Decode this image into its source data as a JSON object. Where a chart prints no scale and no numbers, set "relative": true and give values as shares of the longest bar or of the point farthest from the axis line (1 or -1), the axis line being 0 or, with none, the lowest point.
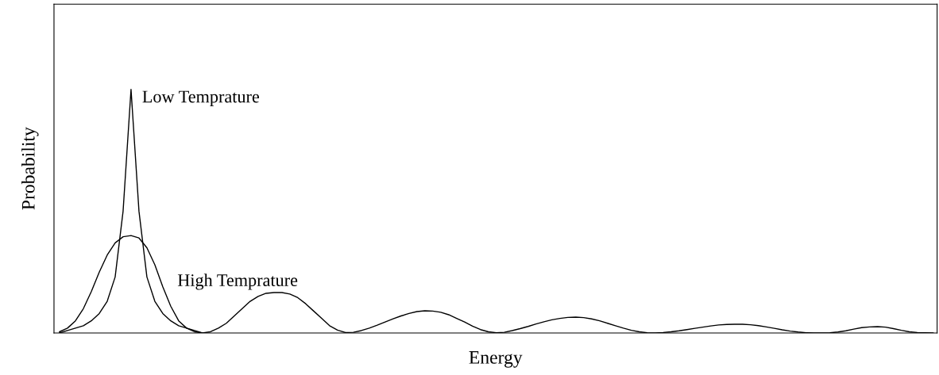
{
  "chart_data": {
    "type": "line",
    "relative": true,
    "xlabel": "Energy",
    "ylabel": "Probability",
    "tick_labels": false,
    "legend": false,
    "categories": [
      null,
      null,
      null,
      null,
      null,
      null,
      null,
      null,
      null,
      null,
      null,
      null,
      null,
      null,
      null,
      null,
      null,
      null,
      null,
      null,
      null,
      null,
      null,
      null,
      null,
      null,
      null,
      null,
      null,
      null,
      null,
      null,
      null,
      null,
      null,
      null,
      null,
      null,
      null,
      null,
      null,
      null,
      null,
      null,
      null,
      null,
      null,
      null,
      null,
      null,
      null,
      null,
      null,
      null,
      null,
      null,
      null,
      null,
      null,
      null,
      null,
      null,
      null,
      null,
      null,
      null,
      null,
      null,
      null,
      null,
      null,
      null,
      null,
      null,
      null,
      null,
      null,
      null,
      null,
      null,
      null,
      null,
      null,
      null,
      null,
      null,
      null,
      null,
      null,
      null,
      null,
      null,
      null,
      null,
      null,
      null,
      null,
      null,
      null,
      null,
      null,
      null,
      null,
      null,
      null,
      null,
      null,
      null,
      null,
      null,
      null
    ],
    "series": [
      {
        "name": "Low Temprature",
        "color": "#000000",
        "values": [
          0,
          0.01,
          0.02,
          0.03,
          0.05,
          0.08,
          0.13,
          0.23,
          0.5,
          1.0,
          0.5,
          0.23,
          0.13,
          0.08,
          0.05,
          0.03,
          0.02,
          0.01,
          0,
          null,
          null,
          null,
          null,
          null,
          null,
          null,
          null,
          null,
          null,
          null,
          null,
          null,
          null,
          null,
          null,
          null,
          null,
          null,
          null,
          null,
          null,
          null,
          null,
          null,
          null,
          null,
          null,
          null,
          null,
          null,
          null,
          null,
          null,
          null,
          null,
          null,
          null,
          null,
          null,
          null,
          null,
          null,
          null,
          null,
          null,
          null,
          null,
          null,
          null,
          null,
          null,
          null,
          null,
          null,
          null,
          null,
          null,
          null,
          null,
          null,
          null,
          null,
          null,
          null,
          null,
          null,
          null,
          null,
          null,
          null,
          null,
          null,
          null,
          null,
          null,
          null,
          null,
          null,
          null,
          null,
          null,
          null,
          null,
          null,
          null,
          null,
          null,
          null,
          null,
          null,
          null
        ]
      },
      {
        "name": "High Temprature",
        "color": "#000000",
        "values": [
          0.005,
          0.02,
          0.05,
          0.1,
          0.17,
          0.25,
          0.32,
          0.37,
          0.395,
          0.4,
          0.39,
          0.35,
          0.28,
          0.19,
          0.11,
          0.05,
          0.02,
          0.005,
          0,
          0.005,
          0.02,
          0.04,
          0.07,
          0.1,
          0.13,
          0.15,
          0.163,
          0.166,
          0.166,
          0.16,
          0.145,
          0.12,
          0.09,
          0.06,
          0.03,
          0.012,
          0.002,
          0.003,
          0.01,
          0.02,
          0.032,
          0.045,
          0.058,
          0.07,
          0.08,
          0.088,
          0.091,
          0.09,
          0.085,
          0.075,
          0.06,
          0.045,
          0.028,
          0.014,
          0.005,
          0.001,
          0.003,
          0.01,
          0.018,
          0.027,
          0.037,
          0.046,
          0.054,
          0.06,
          0.064,
          0.065,
          0.063,
          0.058,
          0.05,
          0.04,
          0.03,
          0.02,
          0.011,
          0.005,
          0.001,
          0,
          0.002,
          0.005,
          0.009,
          0.014,
          0.019,
          0.024,
          0.029,
          0.033,
          0.035,
          0.036,
          0.036,
          0.034,
          0.03,
          0.025,
          0.019,
          0.013,
          0.008,
          0.004,
          0.001,
          0,
          0,
          0.001,
          0.004,
          0.009,
          0.016,
          0.022,
          0.025,
          0.026,
          0.024,
          0.018,
          0.011,
          0.005,
          0.002,
          0.001,
          0
        ]
      }
    ]
  }
}
